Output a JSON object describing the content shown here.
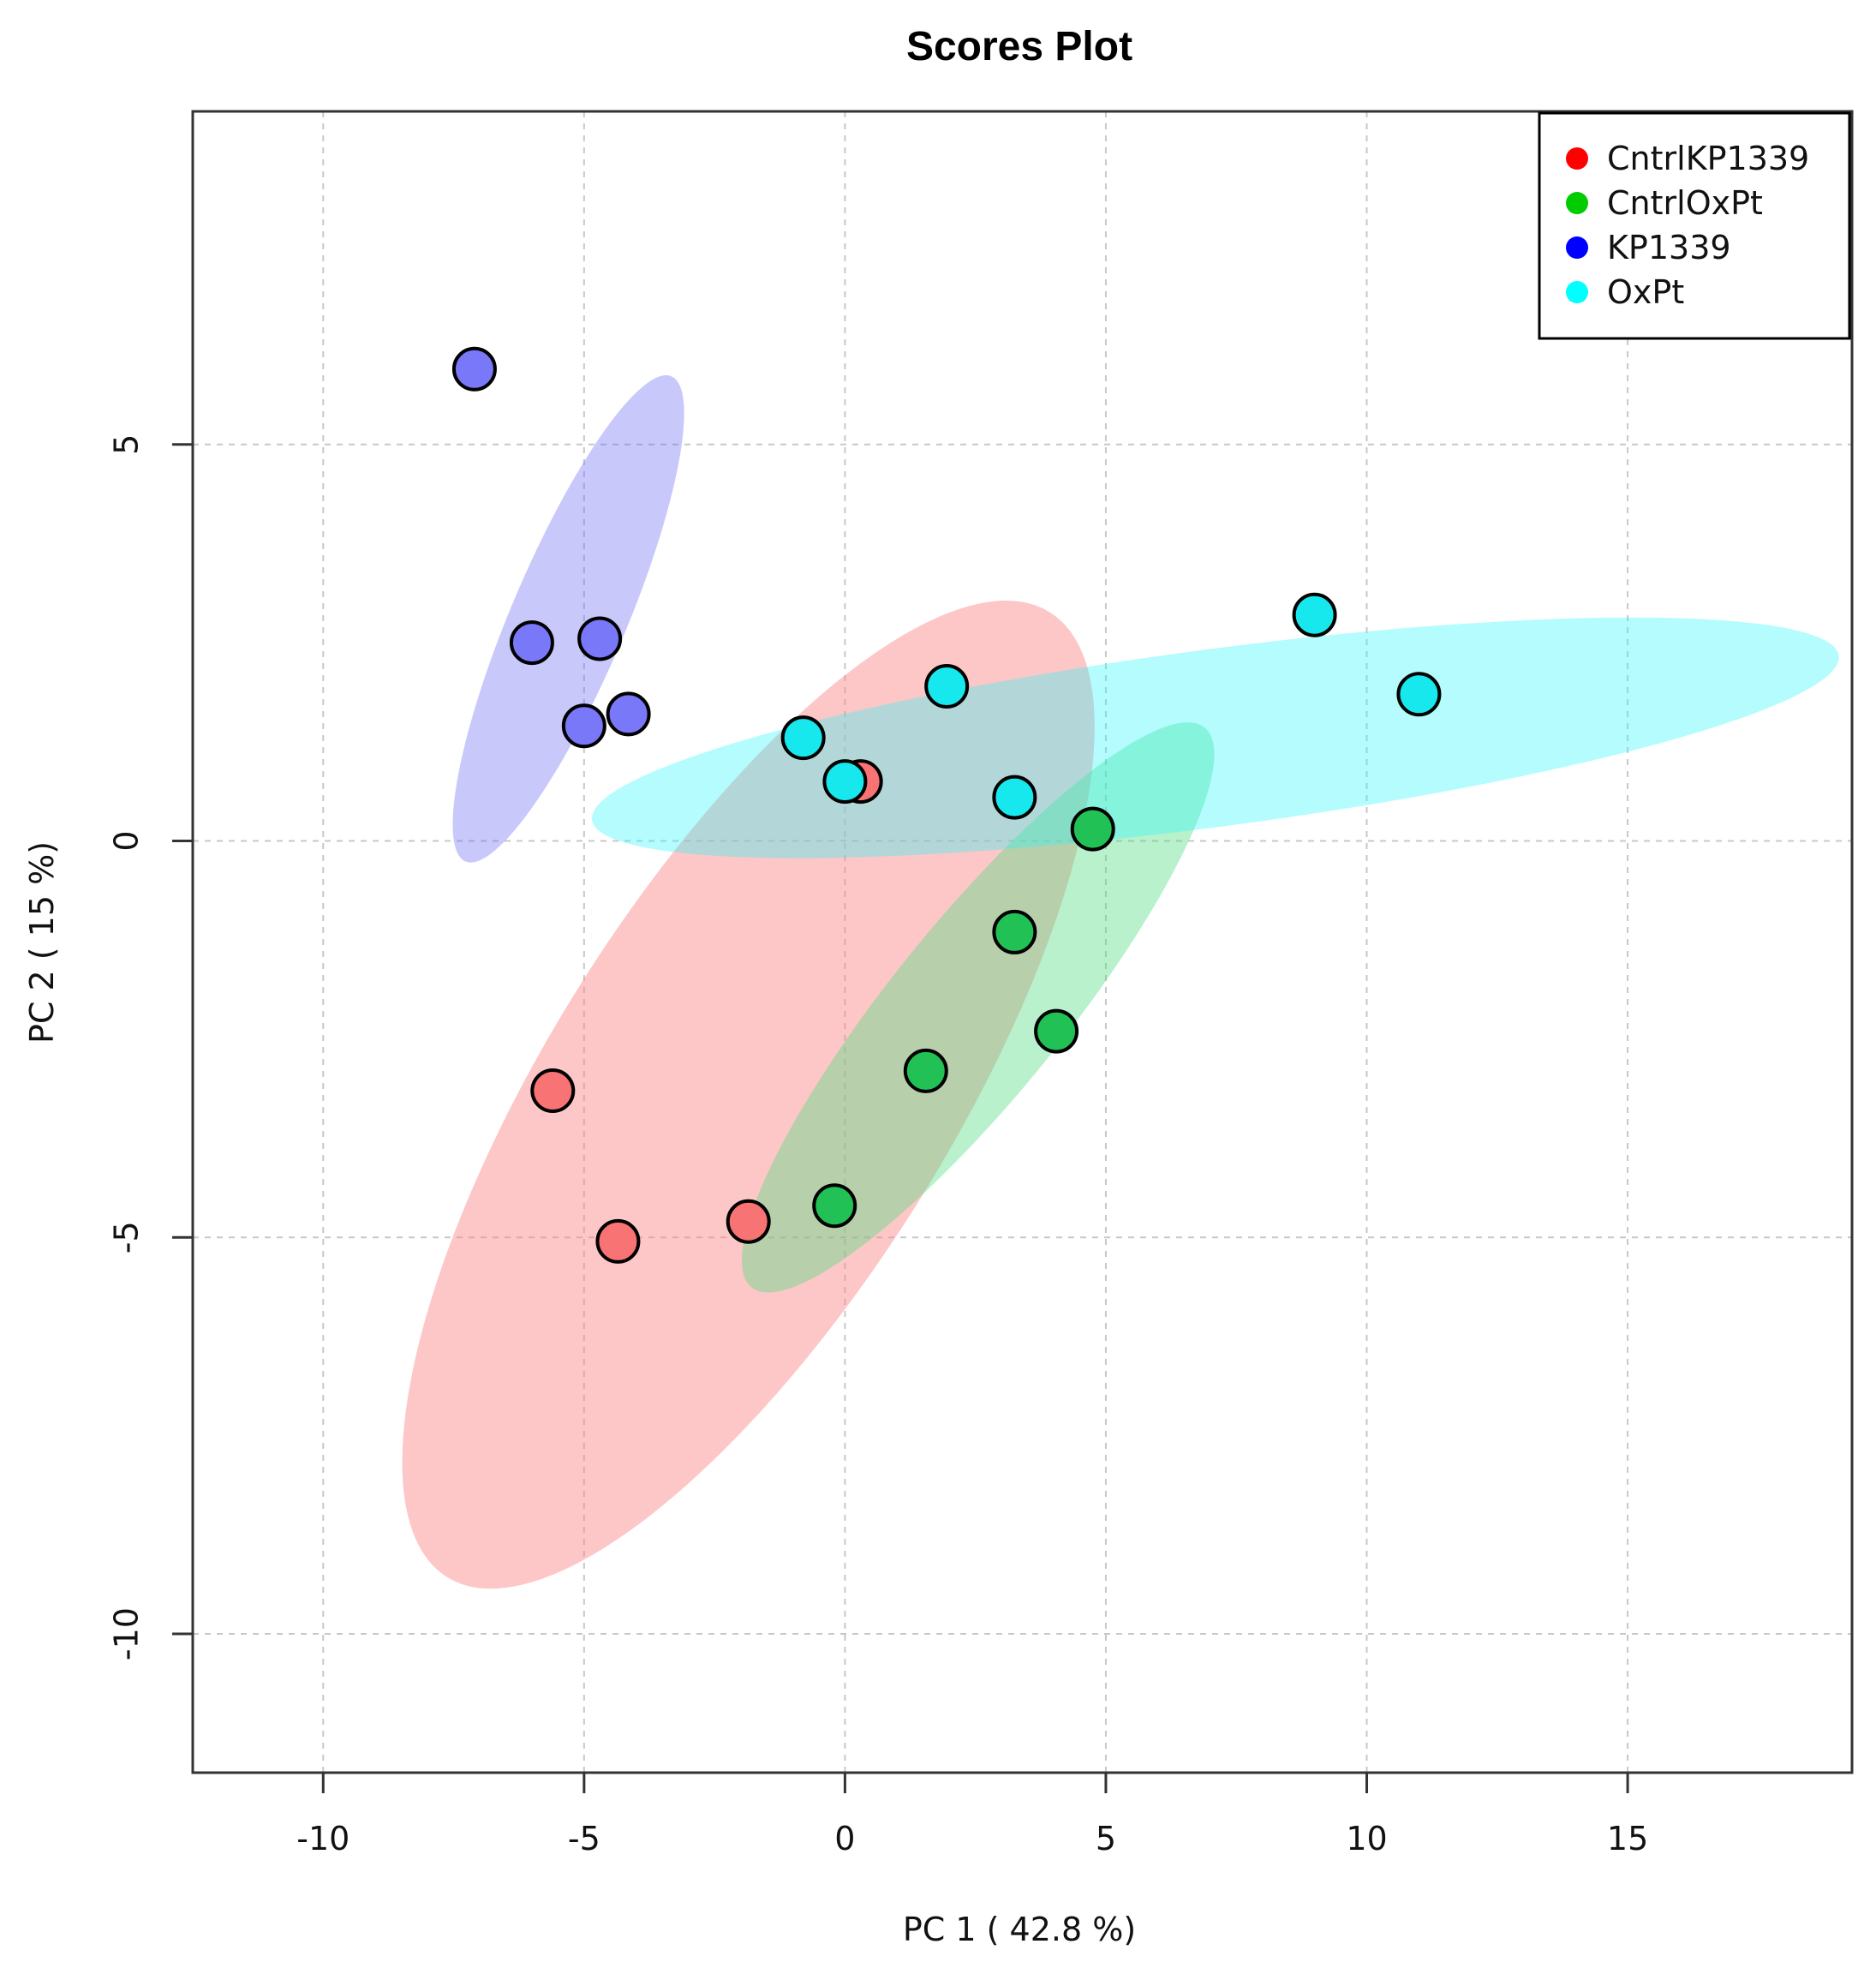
{
  "chart_data": {
    "type": "scatter",
    "title": "Scores Plot",
    "xlabel": "PC 1 ( 42.8 %)",
    "ylabel": "PC 2 ( 15 %)",
    "xlim": [
      -12.5,
      19.3
    ],
    "ylim": [
      -11.75,
      9.2
    ],
    "xticks": [
      -10,
      -5,
      0,
      5,
      10,
      15
    ],
    "yticks": [
      -10,
      -5,
      0,
      5
    ],
    "grid": true,
    "legend_position": "top-right",
    "series": [
      {
        "name": "CntrlKP1339",
        "color": "#ff0000",
        "fill": "#f87373",
        "ellipse_fill": "rgba(250,130,130,0.45)",
        "points": [
          [
            0.3,
            0.75
          ],
          [
            -5.6,
            -3.15
          ],
          [
            -4.35,
            -5.05
          ],
          [
            -1.85,
            -4.8
          ]
        ],
        "ellipse": {
          "cx": -1.85,
          "cy": -3.2,
          "rx": 10.9,
          "ry": 3.85,
          "angle": 58
        }
      },
      {
        "name": "CntrlOxPt",
        "color": "#00cc00",
        "fill": "#22c155",
        "ellipse_fill": "rgba(80,220,130,0.40)",
        "points": [
          [
            4.75,
            0.15
          ],
          [
            3.25,
            -1.15
          ],
          [
            4.05,
            -2.4
          ],
          [
            1.55,
            -2.9
          ],
          [
            -0.2,
            -4.6
          ]
        ],
        "ellipse": {
          "cx": 2.55,
          "cy": -2.1,
          "rx": 6.9,
          "ry": 1.65,
          "angle": 51
        }
      },
      {
        "name": "KP1339",
        "color": "#0000ff",
        "fill": "#7878f8",
        "ellipse_fill": "rgba(110,110,245,0.38)",
        "points": [
          [
            -7.1,
            5.95
          ],
          [
            -6.0,
            2.5
          ],
          [
            -4.7,
            2.55
          ],
          [
            -5.0,
            1.45
          ],
          [
            -4.15,
            1.6
          ]
        ],
        "ellipse": {
          "cx": -5.3,
          "cy": 2.8,
          "rx": 5.05,
          "ry": 1.1,
          "angle": 67
        }
      },
      {
        "name": "OxPt",
        "color": "#00ffff",
        "fill": "#17e8ee",
        "ellipse_fill": "rgba(40,245,250,0.35)",
        "points": [
          [
            9.0,
            2.85
          ],
          [
            11.0,
            1.85
          ],
          [
            1.95,
            1.95
          ],
          [
            -0.8,
            1.3
          ],
          [
            0.0,
            0.75
          ],
          [
            3.25,
            0.55
          ]
        ],
        "ellipse": {
          "cx": 7.1,
          "cy": 1.3,
          "rx": 12.05,
          "ry": 1.7,
          "angle": 7.5
        }
      }
    ]
  }
}
